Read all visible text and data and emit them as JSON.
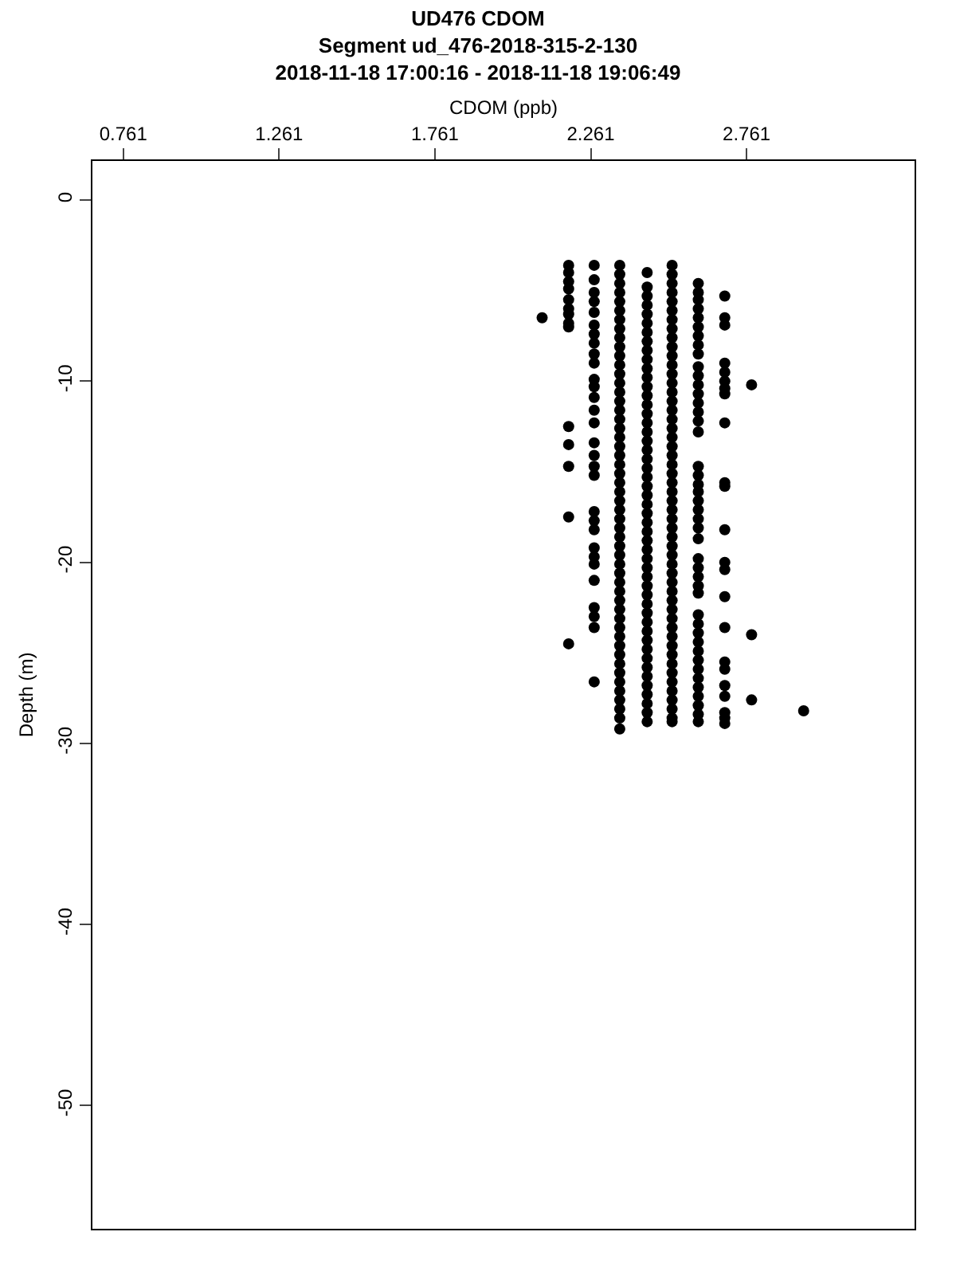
{
  "chart_data": {
    "type": "scatter",
    "title": "UD476 CDOM",
    "subtitle": "Segment ud_476-2018-315-2-130\n2018-11-18 17:00:16 - 2018-11-18 19:06:49",
    "xlabel": "CDOM (ppb)",
    "ylabel": "Depth (m)",
    "xlim": [
      0.662,
      3.3
    ],
    "xticks": [
      0.761,
      1.261,
      1.761,
      2.261,
      2.761
    ],
    "ylim": [
      -56.8,
      2.16
    ],
    "yticks": [
      0,
      -10,
      -20,
      -30,
      -40,
      -50
    ],
    "marker": "circle",
    "series": [
      {
        "color": "#000000",
        "x": [
          2.105
        ],
        "values": [
          -6.5
        ]
      },
      {
        "color": "#000000",
        "x": [
          2.19,
          2.19,
          2.19,
          2.19,
          2.19,
          2.19,
          2.19,
          2.19,
          2.19,
          2.19,
          2.19,
          2.19,
          2.19,
          2.19
        ],
        "values": [
          -3.6,
          -4.0,
          -4.5,
          -4.9,
          -5.5,
          -6.0,
          -6.3,
          -6.8,
          -7.0,
          -12.5,
          -13.5,
          -14.7,
          -17.5,
          -24.5
        ]
      },
      {
        "color": "#000000",
        "x": [
          2.272,
          2.272,
          2.272,
          2.272,
          2.272,
          2.272,
          2.272,
          2.272,
          2.272,
          2.272,
          2.272,
          2.272,
          2.272,
          2.272,
          2.272,
          2.272,
          2.272,
          2.272,
          2.272,
          2.272,
          2.272,
          2.272,
          2.272,
          2.272,
          2.272,
          2.272,
          2.272,
          2.272,
          2.272,
          2.272
        ],
        "values": [
          -3.6,
          -4.4,
          -5.1,
          -5.6,
          -6.2,
          -6.9,
          -7.4,
          -7.9,
          -8.5,
          -9.0,
          -9.9,
          -10.3,
          -10.9,
          -11.6,
          -12.3,
          -13.4,
          -14.1,
          -14.7,
          -15.2,
          -17.2,
          -17.7,
          -18.2,
          -19.2,
          -19.7,
          -20.1,
          -21.0,
          -22.5,
          -23.0,
          -23.6,
          -26.6
        ]
      },
      {
        "color": "#000000",
        "x": [
          2.354,
          2.354,
          2.354,
          2.354,
          2.354,
          2.354,
          2.354,
          2.354,
          2.354,
          2.354,
          2.354,
          2.354,
          2.354,
          2.354,
          2.354,
          2.354,
          2.354,
          2.354,
          2.354,
          2.354,
          2.354,
          2.354,
          2.354,
          2.354,
          2.354,
          2.354,
          2.354,
          2.354,
          2.354,
          2.354,
          2.354,
          2.354,
          2.354,
          2.354,
          2.354,
          2.354,
          2.354,
          2.354,
          2.354,
          2.354,
          2.354,
          2.354,
          2.354,
          2.354,
          2.354,
          2.354,
          2.354,
          2.354,
          2.354,
          2.354,
          2.354,
          2.354
        ],
        "values": [
          -3.6,
          -4.1,
          -4.6,
          -5.1,
          -5.6,
          -6.1,
          -6.6,
          -7.1,
          -7.6,
          -8.1,
          -8.6,
          -9.1,
          -9.6,
          -10.1,
          -10.6,
          -11.1,
          -11.6,
          -12.1,
          -12.6,
          -13.1,
          -13.6,
          -14.1,
          -14.6,
          -15.1,
          -15.6,
          -16.1,
          -16.6,
          -17.1,
          -17.6,
          -18.1,
          -18.6,
          -19.1,
          -19.6,
          -20.1,
          -20.6,
          -21.1,
          -21.6,
          -22.1,
          -22.6,
          -23.1,
          -23.6,
          -24.1,
          -24.6,
          -25.1,
          -25.6,
          -26.1,
          -26.6,
          -27.1,
          -27.6,
          -28.1,
          -28.6,
          -29.2
        ]
      },
      {
        "color": "#000000",
        "x": [
          2.442,
          2.442,
          2.442,
          2.442,
          2.442,
          2.442,
          2.442,
          2.442,
          2.442,
          2.442,
          2.442,
          2.442,
          2.442,
          2.442,
          2.442,
          2.442,
          2.442,
          2.442,
          2.442,
          2.442,
          2.442,
          2.442,
          2.442,
          2.442,
          2.442,
          2.442,
          2.442,
          2.442,
          2.442,
          2.442,
          2.442,
          2.442,
          2.442,
          2.442,
          2.442,
          2.442,
          2.442,
          2.442,
          2.442,
          2.442,
          2.442,
          2.442,
          2.442,
          2.442,
          2.442,
          2.442,
          2.442,
          2.442,
          2.442,
          2.442
        ],
        "values": [
          -4.0,
          -4.8,
          -5.3,
          -5.8,
          -6.3,
          -6.8,
          -7.3,
          -7.8,
          -8.3,
          -8.8,
          -9.3,
          -9.8,
          -10.3,
          -10.8,
          -11.3,
          -11.8,
          -12.3,
          -12.8,
          -13.3,
          -13.8,
          -14.3,
          -14.8,
          -15.3,
          -15.8,
          -16.3,
          -16.8,
          -17.3,
          -17.8,
          -18.3,
          -18.8,
          -19.3,
          -19.8,
          -20.3,
          -20.8,
          -21.3,
          -21.8,
          -22.3,
          -22.8,
          -23.3,
          -23.8,
          -24.3,
          -24.8,
          -25.3,
          -25.8,
          -26.3,
          -26.8,
          -27.3,
          -27.8,
          -28.3,
          -28.8
        ]
      },
      {
        "color": "#000000",
        "x": [
          2.522,
          2.522,
          2.522,
          2.522,
          2.522,
          2.522,
          2.522,
          2.522,
          2.522,
          2.522,
          2.522,
          2.522,
          2.522,
          2.522,
          2.522,
          2.522,
          2.522,
          2.522,
          2.522,
          2.522,
          2.522,
          2.522,
          2.522,
          2.522,
          2.522,
          2.522,
          2.522,
          2.522,
          2.522,
          2.522,
          2.522,
          2.522,
          2.522,
          2.522,
          2.522,
          2.522,
          2.522,
          2.522,
          2.522,
          2.522,
          2.522,
          2.522,
          2.522,
          2.522,
          2.522,
          2.522,
          2.522,
          2.522,
          2.522,
          2.522,
          2.522,
          2.522
        ],
        "values": [
          -3.6,
          -4.1,
          -4.6,
          -5.1,
          -5.6,
          -6.1,
          -6.6,
          -7.1,
          -7.6,
          -8.1,
          -8.6,
          -9.1,
          -9.6,
          -10.1,
          -10.6,
          -11.1,
          -11.6,
          -12.1,
          -12.6,
          -13.1,
          -13.6,
          -14.1,
          -14.6,
          -15.1,
          -15.6,
          -16.1,
          -16.6,
          -17.1,
          -17.6,
          -18.1,
          -18.6,
          -19.1,
          -19.6,
          -20.1,
          -20.6,
          -21.1,
          -21.6,
          -22.1,
          -22.6,
          -23.1,
          -23.6,
          -24.1,
          -24.6,
          -25.1,
          -25.6,
          -26.1,
          -26.6,
          -27.1,
          -27.6,
          -28.1,
          -28.6,
          -28.8
        ]
      },
      {
        "color": "#000000",
        "x": [
          2.606,
          2.606,
          2.606,
          2.606,
          2.606,
          2.606,
          2.606,
          2.606,
          2.606,
          2.606,
          2.606,
          2.606,
          2.606,
          2.606,
          2.606,
          2.606,
          2.606,
          2.606,
          2.606,
          2.606,
          2.606,
          2.606,
          2.606,
          2.606,
          2.606,
          2.606,
          2.606,
          2.606,
          2.606,
          2.606,
          2.606,
          2.606,
          2.606,
          2.606,
          2.606,
          2.606,
          2.606,
          2.606,
          2.606,
          2.606,
          2.606,
          2.606,
          2.606,
          2.606
        ],
        "values": [
          -4.6,
          -5.1,
          -5.5,
          -6.0,
          -6.5,
          -7.0,
          -7.5,
          -8.0,
          -8.5,
          -9.2,
          -9.7,
          -10.2,
          -10.7,
          -11.2,
          -11.7,
          -12.2,
          -12.8,
          -14.7,
          -15.2,
          -15.7,
          -16.1,
          -16.6,
          -17.1,
          -17.6,
          -18.1,
          -18.7,
          -19.8,
          -20.3,
          -20.8,
          -21.3,
          -21.7,
          -22.9,
          -23.4,
          -23.9,
          -24.4,
          -24.9,
          -25.4,
          -25.9,
          -26.4,
          -26.9,
          -27.4,
          -27.9,
          -28.4,
          -28.8
        ]
      },
      {
        "color": "#000000",
        "x": [
          2.691,
          2.691,
          2.691,
          2.691,
          2.691,
          2.691,
          2.691,
          2.691,
          2.691,
          2.691,
          2.691,
          2.691,
          2.691,
          2.691,
          2.691,
          2.691,
          2.691,
          2.691,
          2.691,
          2.691,
          2.691,
          2.691,
          2.691
        ],
        "values": [
          -5.3,
          -6.5,
          -6.9,
          -9.0,
          -9.5,
          -10.0,
          -10.4,
          -10.7,
          -12.3,
          -15.6,
          -15.8,
          -18.2,
          -20.0,
          -20.4,
          -21.9,
          -23.6,
          -25.5,
          -25.9,
          -26.8,
          -27.4,
          -28.3,
          -28.6,
          -28.9
        ]
      },
      {
        "color": "#000000",
        "x": [
          2.777,
          2.777,
          2.777
        ],
        "values": [
          -10.2,
          -24.0,
          -27.6
        ]
      },
      {
        "color": "#000000",
        "x": [
          2.944
        ],
        "values": [
          -28.2
        ]
      }
    ]
  }
}
